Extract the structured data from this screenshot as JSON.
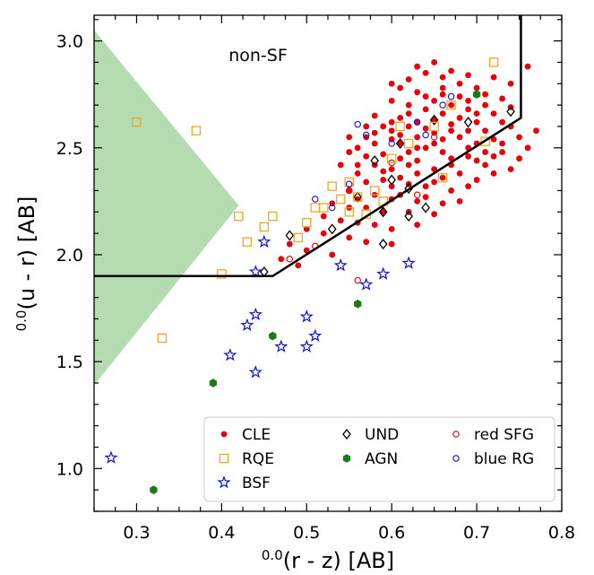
{
  "chart_data": {
    "type": "scatter",
    "xlim": [
      0.25,
      0.8
    ],
    "ylim": [
      0.8,
      3.12
    ],
    "x_ticks": [
      "0.3",
      "0.4",
      "0.5",
      "0.6",
      "0.7",
      "0.8"
    ],
    "y_ticks": [
      "1.0",
      "1.5",
      "2.0",
      "2.5",
      "3.0"
    ],
    "xlabel_sup": "0.0",
    "xlabel": "(r - z) [AB]",
    "ylabel_sup": "0.0",
    "ylabel": "(u - r) [AB]",
    "region_label": "non-SF",
    "grid": false,
    "legend_position": "bottom-right",
    "shaded_region": {
      "color": "#a8d5a2",
      "polygon": [
        [
          0.25,
          3.05
        ],
        [
          0.42,
          2.23
        ],
        [
          0.25,
          1.39
        ]
      ]
    },
    "boundary_line": {
      "color": "#000000",
      "points": [
        [
          0.25,
          1.9
        ],
        [
          0.46,
          1.9
        ],
        [
          0.752,
          2.64
        ],
        [
          0.752,
          3.12
        ]
      ]
    },
    "legend": [
      {
        "label": "CLE",
        "marker": "filled-circle",
        "color": "#e8000b"
      },
      {
        "label": "UND",
        "marker": "diamond",
        "color": "#000000"
      },
      {
        "label": "red SFG",
        "marker": "open-circle",
        "color": "#e8000b"
      },
      {
        "label": "RQE",
        "marker": "square",
        "color": "#f5a623"
      },
      {
        "label": "AGN",
        "marker": "hexagon",
        "color": "#1a7a1a"
      },
      {
        "label": "blue RG",
        "marker": "open-circle",
        "color": "#1010dd"
      },
      {
        "label": "BSF",
        "marker": "star",
        "color": "#1010dd"
      }
    ],
    "series": [
      {
        "name": "CLE",
        "marker": "filled-circle",
        "color": "#e8000b",
        "points": [
          [
            0.62,
            2.82
          ],
          [
            0.63,
            2.88
          ],
          [
            0.64,
            2.85
          ],
          [
            0.65,
            2.9
          ],
          [
            0.66,
            2.83
          ],
          [
            0.67,
            2.86
          ],
          [
            0.68,
            2.8
          ],
          [
            0.69,
            2.84
          ],
          [
            0.61,
            2.78
          ],
          [
            0.6,
            2.8
          ],
          [
            0.63,
            2.76
          ],
          [
            0.66,
            2.75
          ],
          [
            0.7,
            2.78
          ],
          [
            0.72,
            2.83
          ],
          [
            0.74,
            2.8
          ],
          [
            0.76,
            2.88
          ],
          [
            0.65,
            2.72
          ],
          [
            0.67,
            2.7
          ],
          [
            0.69,
            2.72
          ],
          [
            0.71,
            2.7
          ],
          [
            0.73,
            2.73
          ],
          [
            0.62,
            2.7
          ],
          [
            0.64,
            2.68
          ],
          [
            0.6,
            2.72
          ],
          [
            0.58,
            2.65
          ],
          [
            0.61,
            2.64
          ],
          [
            0.63,
            2.62
          ],
          [
            0.66,
            2.66
          ],
          [
            0.68,
            2.64
          ],
          [
            0.7,
            2.62
          ],
          [
            0.72,
            2.66
          ],
          [
            0.74,
            2.6
          ],
          [
            0.59,
            2.6
          ],
          [
            0.6,
            2.58
          ],
          [
            0.62,
            2.6
          ],
          [
            0.64,
            2.59
          ],
          [
            0.65,
            2.63
          ],
          [
            0.67,
            2.61
          ],
          [
            0.69,
            2.58
          ],
          [
            0.71,
            2.58
          ],
          [
            0.57,
            2.55
          ],
          [
            0.58,
            2.52
          ],
          [
            0.6,
            2.54
          ],
          [
            0.61,
            2.52
          ],
          [
            0.63,
            2.55
          ],
          [
            0.65,
            2.57
          ],
          [
            0.66,
            2.54
          ],
          [
            0.68,
            2.55
          ],
          [
            0.7,
            2.52
          ],
          [
            0.72,
            2.54
          ],
          [
            0.73,
            2.48
          ],
          [
            0.75,
            2.45
          ],
          [
            0.55,
            2.48
          ],
          [
            0.57,
            2.46
          ],
          [
            0.59,
            2.47
          ],
          [
            0.61,
            2.45
          ],
          [
            0.62,
            2.48
          ],
          [
            0.64,
            2.5
          ],
          [
            0.66,
            2.48
          ],
          [
            0.67,
            2.45
          ],
          [
            0.69,
            2.46
          ],
          [
            0.71,
            2.42
          ],
          [
            0.58,
            2.42
          ],
          [
            0.6,
            2.4
          ],
          [
            0.62,
            2.42
          ],
          [
            0.63,
            2.38
          ],
          [
            0.65,
            2.4
          ],
          [
            0.66,
            2.36
          ],
          [
            0.68,
            2.38
          ],
          [
            0.7,
            2.35
          ],
          [
            0.72,
            2.38
          ],
          [
            0.56,
            2.38
          ],
          [
            0.57,
            2.34
          ],
          [
            0.59,
            2.35
          ],
          [
            0.6,
            2.32
          ],
          [
            0.62,
            2.33
          ],
          [
            0.64,
            2.32
          ],
          [
            0.65,
            2.34
          ],
          [
            0.67,
            2.3
          ],
          [
            0.69,
            2.32
          ],
          [
            0.55,
            2.3
          ],
          [
            0.56,
            2.26
          ],
          [
            0.58,
            2.28
          ],
          [
            0.6,
            2.26
          ],
          [
            0.61,
            2.28
          ],
          [
            0.63,
            2.25
          ],
          [
            0.64,
            2.27
          ],
          [
            0.66,
            2.24
          ],
          [
            0.68,
            2.25
          ],
          [
            0.53,
            2.24
          ],
          [
            0.55,
            2.22
          ],
          [
            0.57,
            2.22
          ],
          [
            0.59,
            2.2
          ],
          [
            0.62,
            2.2
          ],
          [
            0.65,
            2.19
          ],
          [
            0.52,
            2.18
          ],
          [
            0.54,
            2.16
          ],
          [
            0.56,
            2.15
          ],
          [
            0.58,
            2.14
          ],
          [
            0.6,
            2.12
          ],
          [
            0.63,
            2.14
          ],
          [
            0.5,
            2.12
          ],
          [
            0.52,
            2.1
          ],
          [
            0.55,
            2.08
          ],
          [
            0.57,
            2.06
          ],
          [
            0.6,
            2.05
          ],
          [
            0.48,
            2.05
          ],
          [
            0.5,
            2.02
          ],
          [
            0.53,
            2.0
          ],
          [
            0.47,
            1.98
          ],
          [
            0.49,
            1.95
          ],
          [
            0.69,
            2.68
          ],
          [
            0.68,
            2.74
          ],
          [
            0.66,
            2.78
          ],
          [
            0.64,
            2.74
          ],
          [
            0.62,
            2.66
          ],
          [
            0.7,
            2.66
          ],
          [
            0.73,
            2.62
          ],
          [
            0.74,
            2.69
          ],
          [
            0.71,
            2.75
          ],
          [
            0.67,
            2.58
          ],
          [
            0.65,
            2.52
          ],
          [
            0.63,
            2.5
          ],
          [
            0.61,
            2.56
          ],
          [
            0.69,
            2.5
          ],
          [
            0.71,
            2.48
          ],
          [
            0.73,
            2.52
          ],
          [
            0.75,
            2.55
          ],
          [
            0.76,
            2.5
          ],
          [
            0.77,
            2.58
          ],
          [
            0.6,
            2.62
          ],
          [
            0.58,
            2.57
          ],
          [
            0.56,
            2.5
          ],
          [
            0.57,
            2.6
          ],
          [
            0.55,
            2.55
          ],
          [
            0.54,
            2.42
          ],
          [
            0.56,
            2.42
          ],
          [
            0.59,
            2.39
          ],
          [
            0.61,
            2.36
          ],
          [
            0.63,
            2.44
          ],
          [
            0.67,
            2.42
          ],
          [
            0.7,
            2.44
          ],
          [
            0.72,
            2.46
          ],
          [
            0.74,
            2.4
          ]
        ]
      },
      {
        "name": "UND",
        "marker": "diamond",
        "color": "#000000",
        "points": [
          [
            0.45,
            1.92
          ],
          [
            0.48,
            2.09
          ],
          [
            0.53,
            2.12
          ],
          [
            0.56,
            2.27
          ],
          [
            0.58,
            2.44
          ],
          [
            0.59,
            2.2
          ],
          [
            0.59,
            2.05
          ],
          [
            0.6,
            2.35
          ],
          [
            0.61,
            2.52
          ],
          [
            0.62,
            2.31
          ],
          [
            0.62,
            2.18
          ],
          [
            0.64,
            2.22
          ],
          [
            0.65,
            2.63
          ],
          [
            0.69,
            2.62
          ],
          [
            0.74,
            2.67
          ]
        ]
      },
      {
        "name": "red SFG",
        "marker": "open-circle",
        "color": "#e8000b",
        "points": [
          [
            0.48,
            1.98
          ],
          [
            0.51,
            2.04
          ],
          [
            0.55,
            2.3
          ],
          [
            0.56,
            1.88
          ],
          [
            0.6,
            2.43
          ],
          [
            0.63,
            2.28
          ],
          [
            0.65,
            2.55
          ]
        ]
      },
      {
        "name": "RQE",
        "marker": "square",
        "color": "#f5a623",
        "points": [
          [
            0.3,
            2.62
          ],
          [
            0.33,
            1.61
          ],
          [
            0.37,
            2.58
          ],
          [
            0.4,
            1.91
          ],
          [
            0.42,
            2.18
          ],
          [
            0.43,
            2.06
          ],
          [
            0.45,
            2.13
          ],
          [
            0.46,
            2.18
          ],
          [
            0.49,
            2.08
          ],
          [
            0.5,
            2.15
          ],
          [
            0.51,
            2.22
          ],
          [
            0.52,
            2.22
          ],
          [
            0.53,
            2.32
          ],
          [
            0.54,
            2.26
          ],
          [
            0.55,
            2.34
          ],
          [
            0.55,
            2.2
          ],
          [
            0.56,
            2.27
          ],
          [
            0.57,
            2.19
          ],
          [
            0.58,
            2.3
          ],
          [
            0.59,
            2.25
          ],
          [
            0.6,
            2.45
          ],
          [
            0.61,
            2.6
          ],
          [
            0.62,
            2.52
          ],
          [
            0.65,
            2.6
          ],
          [
            0.66,
            2.36
          ],
          [
            0.67,
            2.7
          ],
          [
            0.71,
            2.53
          ],
          [
            0.72,
            2.9
          ]
        ]
      },
      {
        "name": "AGN",
        "marker": "hexagon",
        "color": "#1a7a1a",
        "points": [
          [
            0.32,
            0.9
          ],
          [
            0.39,
            1.4
          ],
          [
            0.46,
            1.62
          ],
          [
            0.56,
            1.77
          ],
          [
            0.7,
            2.75
          ]
        ]
      },
      {
        "name": "blue RG",
        "marker": "open-circle",
        "color": "#1010dd",
        "points": [
          [
            0.51,
            2.26
          ],
          [
            0.53,
            2.22
          ],
          [
            0.55,
            2.33
          ],
          [
            0.56,
            2.61
          ],
          [
            0.57,
            2.56
          ],
          [
            0.6,
            2.52
          ],
          [
            0.63,
            2.62
          ],
          [
            0.64,
            2.56
          ],
          [
            0.66,
            2.7
          ],
          [
            0.67,
            2.74
          ]
        ]
      },
      {
        "name": "BSF",
        "marker": "star",
        "color": "#1010dd",
        "points": [
          [
            0.27,
            1.05
          ],
          [
            0.41,
            1.53
          ],
          [
            0.43,
            1.67
          ],
          [
            0.44,
            1.45
          ],
          [
            0.44,
            1.72
          ],
          [
            0.44,
            1.92
          ],
          [
            0.45,
            2.06
          ],
          [
            0.47,
            1.57
          ],
          [
            0.5,
            1.57
          ],
          [
            0.5,
            1.71
          ],
          [
            0.51,
            1.62
          ],
          [
            0.54,
            1.95
          ],
          [
            0.57,
            1.86
          ],
          [
            0.59,
            1.91
          ],
          [
            0.62,
            1.96
          ]
        ]
      }
    ]
  }
}
